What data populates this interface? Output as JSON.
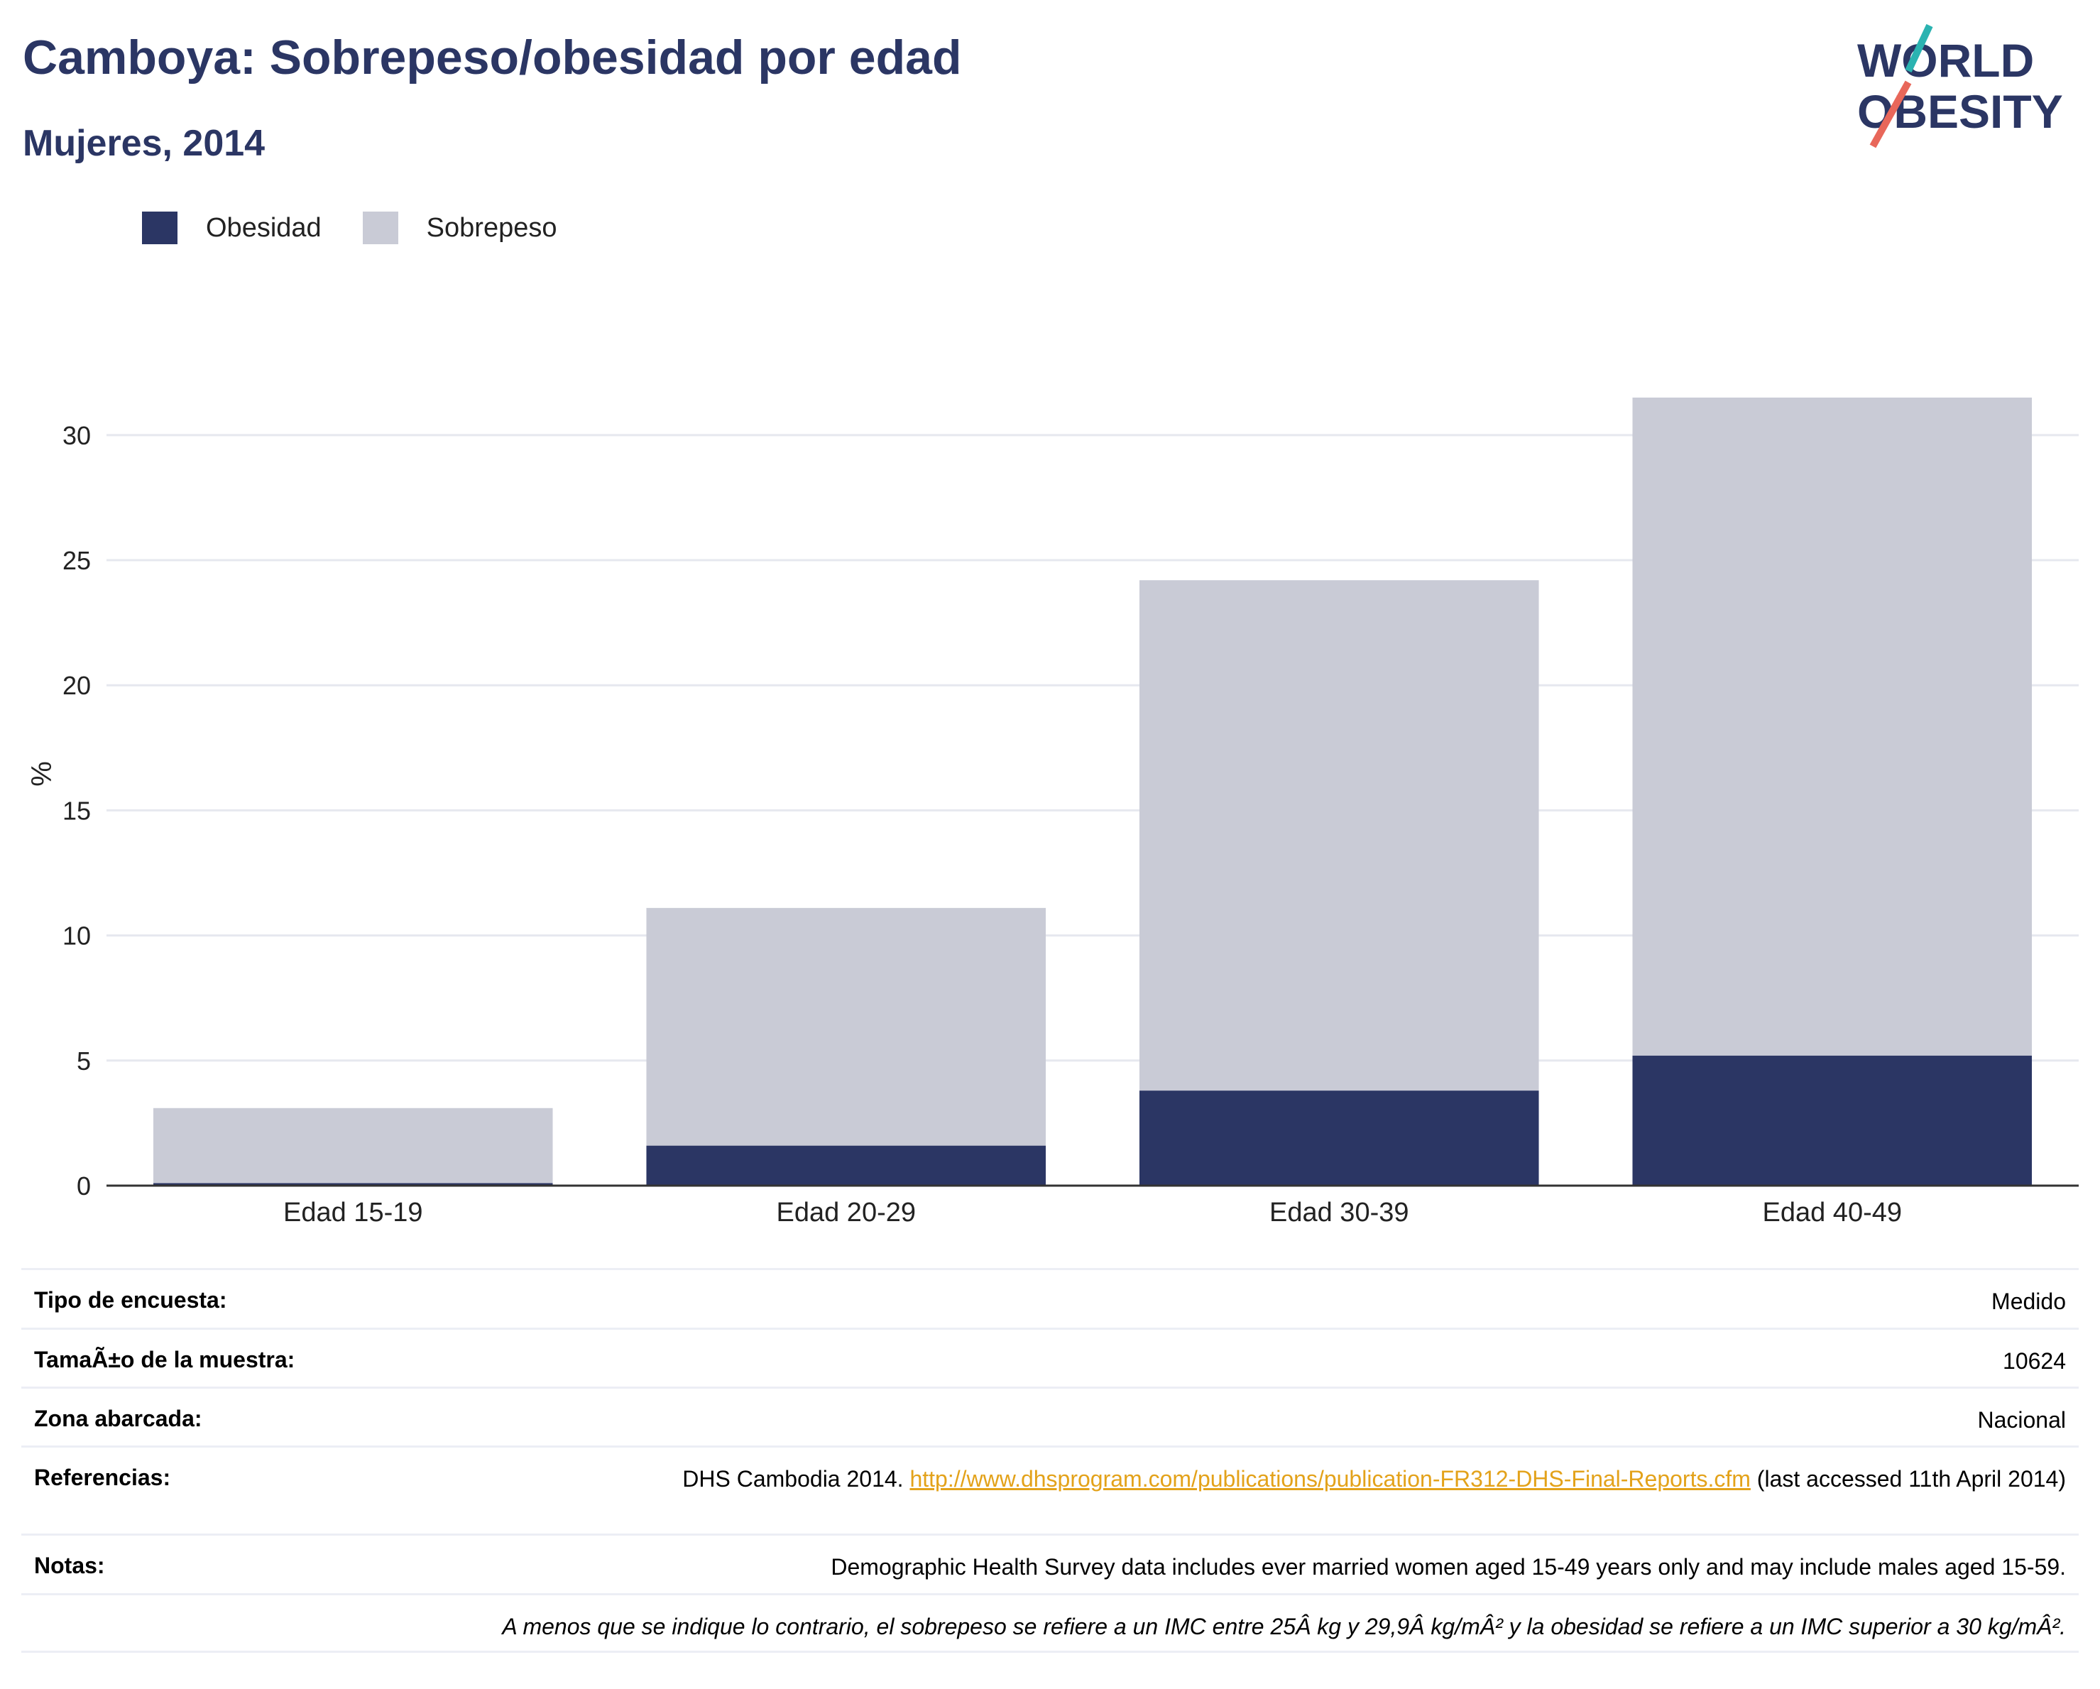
{
  "header": {
    "title": "Camboya: Sobrepeso/obesidad por edad",
    "subtitle": "Mujeres, 2014"
  },
  "logo": {
    "line1": "WORLD",
    "line2": "OBESITY"
  },
  "legend": [
    {
      "label": "Obesidad",
      "color": "#2b3664"
    },
    {
      "label": "Sobrepeso",
      "color": "#c9cbd6"
    }
  ],
  "chart_data": {
    "type": "bar",
    "stacked": true,
    "categories": [
      "Edad 15-19",
      "Edad 20-29",
      "Edad 30-39",
      "Edad 40-49"
    ],
    "series": [
      {
        "name": "Obesidad",
        "values": [
          0.1,
          1.6,
          3.8,
          5.2
        ],
        "color": "#2b3664"
      },
      {
        "name": "Sobrepeso",
        "values": [
          3.0,
          9.5,
          20.4,
          26.3
        ],
        "color": "#c9cbd6"
      }
    ],
    "ylabel": "%",
    "yticks": [
      0,
      5,
      10,
      15,
      20,
      25,
      30
    ],
    "ylim": [
      0,
      31.5
    ],
    "grid": true
  },
  "meta": {
    "survey_type": {
      "label": "Tipo de encuesta:",
      "value": "Medido"
    },
    "sample_size": {
      "label": "TamaÃ±o de la muestra:",
      "value": "10624"
    },
    "area": {
      "label": "Zona abarcada:",
      "value": "Nacional"
    },
    "references": {
      "label": "Referencias:",
      "prefix": "DHS Cambodia 2014. ",
      "link": "http://www.dhsprogram.com/publications/publication-FR312-DHS-Final-Reports.cfm",
      "suffix": " (last accessed 11th April 2014)"
    },
    "notes": {
      "label": "Notas:",
      "value": "Demographic Health Survey data includes ever married women aged 15-49 years only and may include males aged 15-59."
    },
    "footnote": "A menos que se indique lo contrario, el sobrepeso se refiere a un IMC entre 25Â kg y 29,9Â kg/mÂ² y la obesidad se refiere a un IMC superior a 30 kg/mÂ²."
  }
}
